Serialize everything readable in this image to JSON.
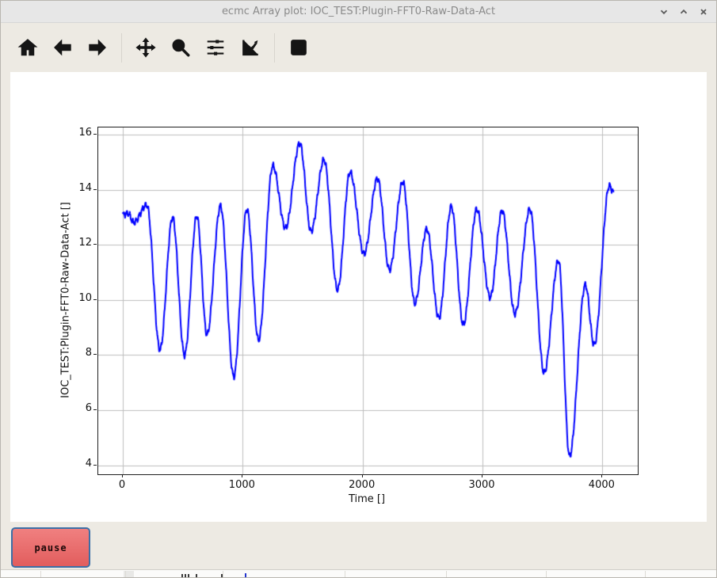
{
  "window": {
    "title": "ecmc Array plot: IOC_TEST:Plugin-FFT0-Raw-Data-Act",
    "controls": [
      {
        "name": "minimize",
        "icon": "chevron-down-icon"
      },
      {
        "name": "maximize",
        "icon": "chevron-up-icon"
      },
      {
        "name": "close",
        "icon": "close-icon"
      }
    ]
  },
  "toolbar": {
    "buttons": [
      {
        "name": "home",
        "icon": "home-icon"
      },
      {
        "name": "back",
        "icon": "back-arrow-icon"
      },
      {
        "name": "forward",
        "icon": "forward-arrow-icon"
      },
      {
        "name": "pan",
        "icon": "pan-arrows-icon"
      },
      {
        "name": "zoom",
        "icon": "zoom-magnifier-icon"
      },
      {
        "name": "configure-subplots",
        "icon": "sliders-icon"
      },
      {
        "name": "customize-axes",
        "icon": "chart-edit-icon"
      },
      {
        "name": "save",
        "icon": "save-floppy-icon"
      }
    ]
  },
  "chart_data": {
    "type": "line",
    "title": "",
    "xlabel": "Time []",
    "ylabel": "IOC_TEST:Plugin-FFT0-Raw-Data-Act []",
    "series_name": "IOC_TEST:Plugin-FFT0-Raw-Data-Act",
    "xlim": [
      -205,
      4295
    ],
    "ylim": [
      3.67,
      16.27
    ],
    "xticks": [
      0,
      1000,
      2000,
      3000,
      4000
    ],
    "yticks": [
      4,
      6,
      8,
      10,
      12,
      14,
      16
    ],
    "grid": true,
    "grid_color": "#bdbdbd",
    "line_color": "#0000ff",
    "n_points": 4096,
    "ripple": {
      "amplitude": 0.085,
      "period": 26,
      "harmonics": [
        [
          0.03,
          0.531,
          1.3
        ],
        [
          0.02,
          1.217,
          0.4
        ]
      ]
    },
    "envelope_points": [
      [
        0,
        13.1
      ],
      [
        45,
        13.15
      ],
      [
        90,
        12.82
      ],
      [
        200,
        13.45
      ],
      [
        310,
        8.2
      ],
      [
        415,
        13.0
      ],
      [
        515,
        8.0
      ],
      [
        617,
        13.05
      ],
      [
        702,
        8.75
      ],
      [
        815,
        13.42
      ],
      [
        925,
        7.22
      ],
      [
        1035,
        13.3
      ],
      [
        1132,
        8.55
      ],
      [
        1251,
        14.88
      ],
      [
        1357,
        12.62
      ],
      [
        1476,
        15.7
      ],
      [
        1570,
        12.5
      ],
      [
        1678,
        15.1
      ],
      [
        1791,
        10.38
      ],
      [
        1895,
        14.65
      ],
      [
        2012,
        11.68
      ],
      [
        2124,
        14.42
      ],
      [
        2224,
        11.1
      ],
      [
        2336,
        14.3
      ],
      [
        2436,
        9.88
      ],
      [
        2535,
        12.58
      ],
      [
        2636,
        9.35
      ],
      [
        2740,
        13.4
      ],
      [
        2840,
        9.1
      ],
      [
        2952,
        13.3
      ],
      [
        3064,
        10.1
      ],
      [
        3164,
        13.25
      ],
      [
        3270,
        9.5
      ],
      [
        3395,
        13.3
      ],
      [
        3514,
        7.36
      ],
      [
        3634,
        11.44
      ],
      [
        3726,
        4.33
      ],
      [
        3858,
        10.55
      ],
      [
        3931,
        8.37
      ],
      [
        4058,
        14.15
      ],
      [
        4095,
        13.9
      ]
    ]
  },
  "pause_button": {
    "label": "pause",
    "fill": "#e96a6a",
    "border": "#3c6fa6",
    "text_color": "#1c0808"
  },
  "bottom_strip": {
    "lines_x": [
      50,
      157,
      280,
      434,
      562,
      688,
      813
    ],
    "cell": {
      "x": 155,
      "width": 13
    },
    "dark_ticks_x": [
      228,
      232,
      236,
      246,
      278
    ],
    "blue_tick_x": 308,
    "blue_color": "#2233cc"
  }
}
